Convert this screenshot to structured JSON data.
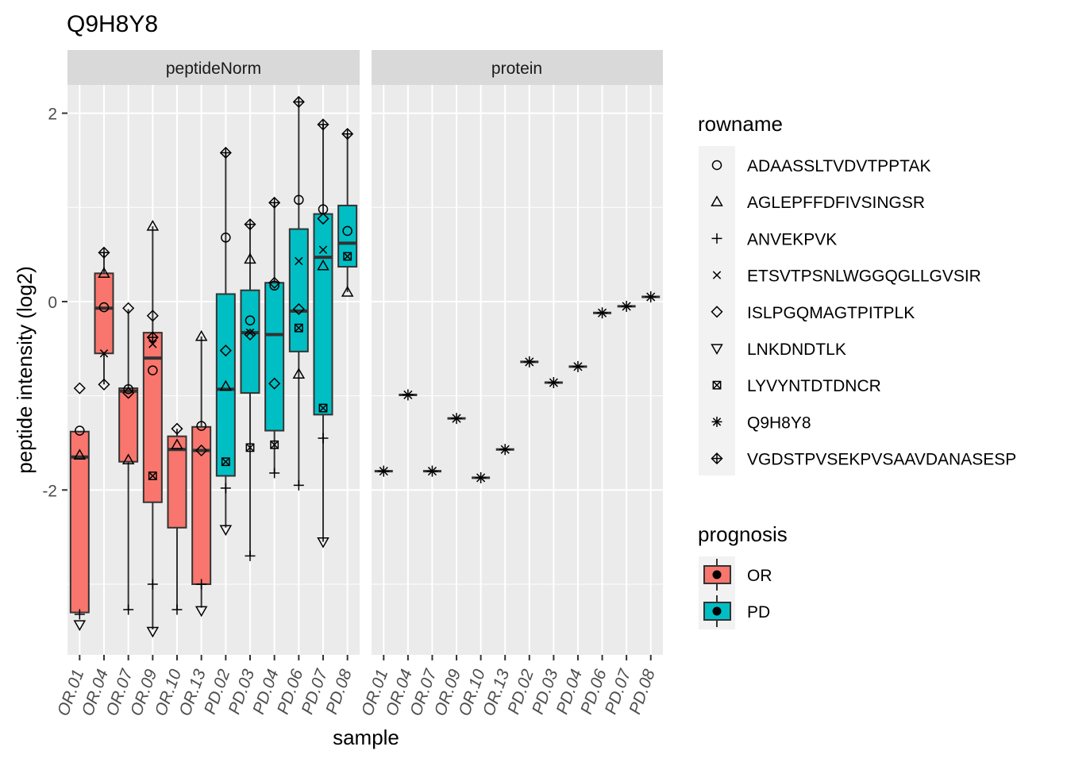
{
  "chart_data": {
    "type": "boxplot",
    "title": "Q9H8Y8",
    "xlabel": "sample",
    "ylabel": "peptide intensity (log2)",
    "ylim": [
      -3.75,
      2.3
    ],
    "y_ticks": [
      -2,
      0,
      2
    ],
    "y_tick_labels": [
      "-2",
      "0",
      "2"
    ],
    "grid": true,
    "legend_position": "right",
    "samples": [
      "OR.01",
      "OR.04",
      "OR.07",
      "OR.09",
      "OR.10",
      "OR.13",
      "PD.02",
      "PD.03",
      "PD.04",
      "PD.06",
      "PD.07",
      "PD.08"
    ],
    "prognosis": [
      "OR",
      "OR",
      "OR",
      "OR",
      "OR",
      "OR",
      "PD",
      "PD",
      "PD",
      "PD",
      "PD",
      "PD"
    ],
    "facets": [
      "peptideNorm",
      "protein"
    ],
    "legend_rowname": {
      "title": "rowname",
      "entries": [
        {
          "label": "ADAASSLTVDVTPPTAK",
          "shape": "circle"
        },
        {
          "label": "AGLEPFFDFIVSINGSR",
          "shape": "triangle"
        },
        {
          "label": "ANVEKPVK",
          "shape": "plus"
        },
        {
          "label": "ETSVTPSNLWGGQGLLGVSIR",
          "shape": "cross"
        },
        {
          "label": "ISLPGQMAGTPITPLK",
          "shape": "diamond"
        },
        {
          "label": "LNKDNDTLK",
          "shape": "triangle-down"
        },
        {
          "label": "LYVYNTDTDNCR",
          "shape": "square-cross"
        },
        {
          "label": "Q9H8Y8",
          "shape": "asterisk"
        },
        {
          "label": "VGDSTPVSEKPVSAAVDANASESP",
          "shape": "diamond-plus"
        }
      ]
    },
    "legend_prognosis": {
      "title": "prognosis",
      "entries": [
        {
          "label": "OR",
          "color": "#F8766D"
        },
        {
          "label": "PD",
          "color": "#00BFC4"
        }
      ]
    },
    "peptideNorm": {
      "boxes": [
        {
          "q1": -3.3,
          "median": -1.65,
          "q3": -1.38,
          "lower": -3.3,
          "upper": -1.38
        },
        {
          "q1": -0.55,
          "median": -0.07,
          "q3": 0.3,
          "lower": -0.88,
          "upper": 0.52
        },
        {
          "q1": -1.7,
          "median": -0.95,
          "q3": -0.92,
          "lower": -3.28,
          "upper": -0.08
        },
        {
          "q1": -2.13,
          "median": -0.6,
          "q3": -0.33,
          "lower": -3.48,
          "upper": 0.8
        },
        {
          "q1": -2.4,
          "median": -1.57,
          "q3": -1.43,
          "lower": -3.27,
          "upper": -1.35
        },
        {
          "q1": -3.0,
          "median": -1.58,
          "q3": -1.33,
          "lower": -3.25,
          "upper": -0.37
        },
        {
          "q1": -1.85,
          "median": -0.93,
          "q3": 0.08,
          "lower": -2.4,
          "upper": 1.58
        },
        {
          "q1": -0.97,
          "median": -0.33,
          "q3": 0.12,
          "lower": -2.7,
          "upper": 0.82
        },
        {
          "q1": -1.37,
          "median": -0.35,
          "q3": 0.2,
          "lower": -1.82,
          "upper": 1.05
        },
        {
          "q1": -0.53,
          "median": -0.1,
          "q3": 0.77,
          "lower": -1.95,
          "upper": 2.12
        },
        {
          "q1": -1.2,
          "median": 0.47,
          "q3": 0.93,
          "lower": -2.55,
          "upper": 1.88
        },
        {
          "q1": 0.37,
          "median": 0.62,
          "q3": 1.02,
          "lower": 0.1,
          "upper": 1.78
        }
      ],
      "points": [
        {
          "sample": 0,
          "shape": "circle",
          "y": -1.37
        },
        {
          "sample": 0,
          "shape": "triangle",
          "y": -1.63
        },
        {
          "sample": 0,
          "shape": "plus",
          "y": -3.32
        },
        {
          "sample": 0,
          "shape": "diamond",
          "y": -0.92
        },
        {
          "sample": 0,
          "shape": "triangle-down",
          "y": -3.43
        },
        {
          "sample": 1,
          "shape": "circle",
          "y": -0.06
        },
        {
          "sample": 1,
          "shape": "triangle",
          "y": 0.3
        },
        {
          "sample": 1,
          "shape": "cross",
          "y": -0.55
        },
        {
          "sample": 1,
          "shape": "diamond",
          "y": -0.88
        },
        {
          "sample": 1,
          "shape": "diamond-plus",
          "y": 0.52
        },
        {
          "sample": 2,
          "shape": "circle",
          "y": -0.93
        },
        {
          "sample": 2,
          "shape": "triangle",
          "y": -1.68
        },
        {
          "sample": 2,
          "shape": "plus",
          "y": -3.27
        },
        {
          "sample": 2,
          "shape": "diamond",
          "y": -0.07
        },
        {
          "sample": 2,
          "shape": "diamond",
          "y": -0.97
        },
        {
          "sample": 3,
          "shape": "circle",
          "y": -0.73
        },
        {
          "sample": 3,
          "shape": "triangle",
          "y": 0.8
        },
        {
          "sample": 3,
          "shape": "plus",
          "y": -3.0
        },
        {
          "sample": 3,
          "shape": "cross",
          "y": -0.45
        },
        {
          "sample": 3,
          "shape": "diamond",
          "y": -0.15
        },
        {
          "sample": 3,
          "shape": "triangle-down",
          "y": -3.5
        },
        {
          "sample": 3,
          "shape": "square-cross",
          "y": -1.85
        },
        {
          "sample": 3,
          "shape": "diamond-plus",
          "y": -0.38
        },
        {
          "sample": 4,
          "shape": "triangle",
          "y": -1.52
        },
        {
          "sample": 4,
          "shape": "plus",
          "y": -3.27
        },
        {
          "sample": 4,
          "shape": "diamond",
          "y": -1.35
        },
        {
          "sample": 5,
          "shape": "circle",
          "y": -1.32
        },
        {
          "sample": 5,
          "shape": "triangle",
          "y": -0.37
        },
        {
          "sample": 5,
          "shape": "plus",
          "y": -3.0
        },
        {
          "sample": 5,
          "shape": "diamond",
          "y": -1.58
        },
        {
          "sample": 5,
          "shape": "triangle-down",
          "y": -3.28
        },
        {
          "sample": 6,
          "shape": "circle",
          "y": 0.68
        },
        {
          "sample": 6,
          "shape": "triangle",
          "y": -0.9
        },
        {
          "sample": 6,
          "shape": "plus",
          "y": -1.98
        },
        {
          "sample": 6,
          "shape": "diamond",
          "y": -0.52
        },
        {
          "sample": 6,
          "shape": "triangle-down",
          "y": -2.42
        },
        {
          "sample": 6,
          "shape": "square-cross",
          "y": -1.7
        },
        {
          "sample": 6,
          "shape": "diamond-plus",
          "y": 1.58
        },
        {
          "sample": 7,
          "shape": "circle",
          "y": -0.2
        },
        {
          "sample": 7,
          "shape": "triangle",
          "y": 0.45
        },
        {
          "sample": 7,
          "shape": "plus",
          "y": -2.7
        },
        {
          "sample": 7,
          "shape": "cross",
          "y": -0.33
        },
        {
          "sample": 7,
          "shape": "diamond",
          "y": -0.35
        },
        {
          "sample": 7,
          "shape": "square-cross",
          "y": -1.55
        },
        {
          "sample": 7,
          "shape": "diamond-plus",
          "y": 0.82
        },
        {
          "sample": 8,
          "shape": "circle",
          "y": 0.17
        },
        {
          "sample": 8,
          "shape": "plus",
          "y": -1.82
        },
        {
          "sample": 8,
          "shape": "diamond",
          "y": 0.2
        },
        {
          "sample": 8,
          "shape": "diamond",
          "y": -0.87
        },
        {
          "sample": 8,
          "shape": "square-cross",
          "y": -1.52
        },
        {
          "sample": 8,
          "shape": "diamond-plus",
          "y": 1.05
        },
        {
          "sample": 9,
          "shape": "circle",
          "y": 1.08
        },
        {
          "sample": 9,
          "shape": "triangle",
          "y": -0.77
        },
        {
          "sample": 9,
          "shape": "plus",
          "y": -1.95
        },
        {
          "sample": 9,
          "shape": "cross",
          "y": 0.43
        },
        {
          "sample": 9,
          "shape": "diamond",
          "y": -0.08
        },
        {
          "sample": 9,
          "shape": "square-cross",
          "y": -0.28
        },
        {
          "sample": 9,
          "shape": "diamond-plus",
          "y": 2.12
        },
        {
          "sample": 10,
          "shape": "circle",
          "y": 0.98
        },
        {
          "sample": 10,
          "shape": "triangle",
          "y": 0.38
        },
        {
          "sample": 10,
          "shape": "plus",
          "y": -1.45
        },
        {
          "sample": 10,
          "shape": "cross",
          "y": 0.55
        },
        {
          "sample": 10,
          "shape": "diamond",
          "y": 0.88
        },
        {
          "sample": 10,
          "shape": "triangle-down",
          "y": -2.55
        },
        {
          "sample": 10,
          "shape": "square-cross",
          "y": -1.13
        },
        {
          "sample": 10,
          "shape": "diamond-plus",
          "y": 1.88
        },
        {
          "sample": 11,
          "shape": "circle",
          "y": 0.75
        },
        {
          "sample": 11,
          "shape": "triangle",
          "y": 0.1
        },
        {
          "sample": 11,
          "shape": "square-cross",
          "y": 0.48
        },
        {
          "sample": 11,
          "shape": "diamond-plus",
          "y": 1.78
        }
      ]
    },
    "protein": {
      "values": [
        -1.8,
        -0.99,
        -1.8,
        -1.24,
        -1.87,
        -1.57,
        -0.64,
        -0.86,
        -0.69,
        -0.12,
        -0.05,
        0.05
      ]
    }
  }
}
